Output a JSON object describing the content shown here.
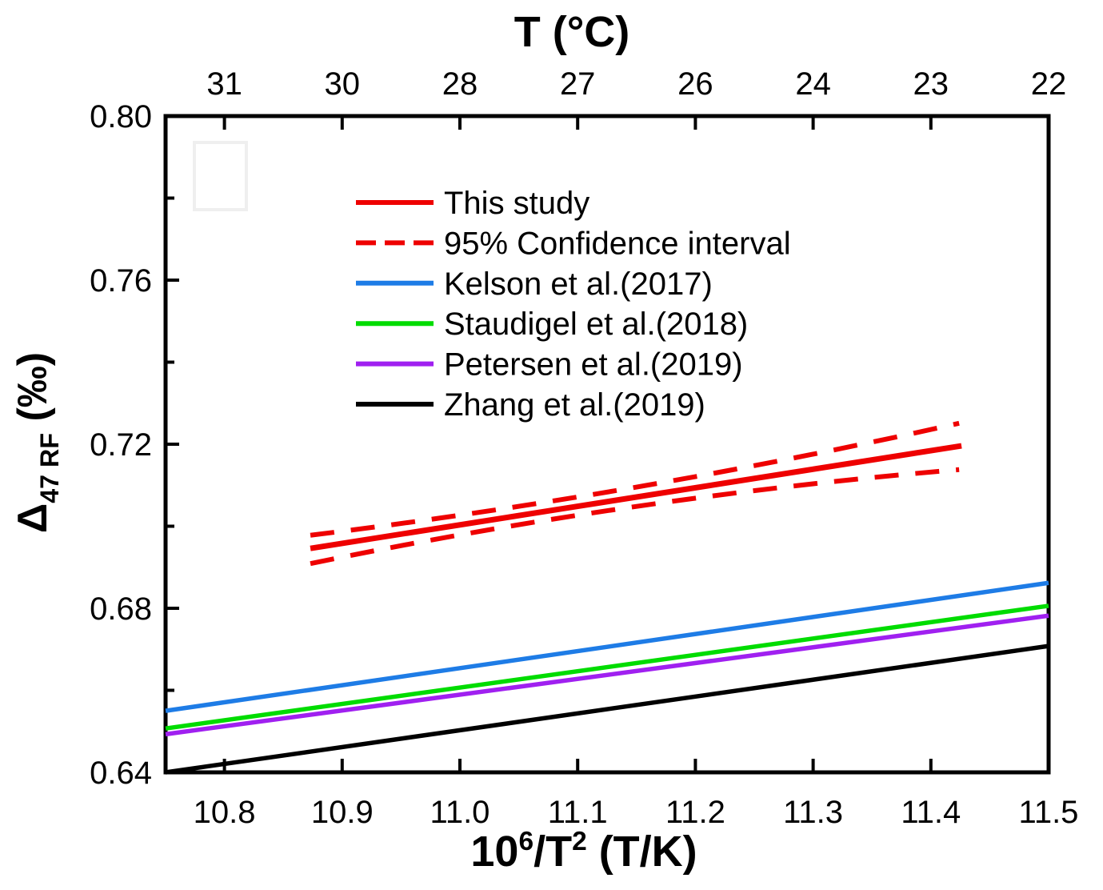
{
  "chart_data": {
    "type": "line",
    "title": "",
    "grid": false,
    "legend_position": "upper-left-inside",
    "top_axis": {
      "title": "T (°C)",
      "tick_positions": [
        10.8,
        10.9,
        11.0,
        11.1,
        11.2,
        11.3,
        11.4,
        11.5
      ],
      "tick_labels": [
        "31",
        "30",
        "28",
        "27",
        "26",
        "24",
        "23",
        "22"
      ]
    },
    "x_axis": {
      "label_plain": "10^6/T^2 (T/K)",
      "label_segments": [
        {
          "t": "10"
        },
        {
          "t": "6",
          "s": "sup"
        },
        {
          "t": "/T"
        },
        {
          "t": "2",
          "s": "sup"
        },
        {
          "t": " (T/K)"
        }
      ],
      "range": [
        10.75,
        11.5
      ],
      "major_ticks": [
        10.8,
        10.9,
        11.0,
        11.1,
        11.2,
        11.3,
        11.4,
        11.5
      ],
      "tick_labels": [
        "10.8",
        "10.9",
        "11.0",
        "11.1",
        "11.2",
        "11.3",
        "11.4",
        "11.5"
      ]
    },
    "y_axis": {
      "label_plain": "Δ47 RF (‰)",
      "label_segments": [
        {
          "t": "Δ"
        },
        {
          "t": "47 RF",
          "s": "sub"
        },
        {
          "t": " (‰)"
        }
      ],
      "range": [
        0.64,
        0.8
      ],
      "major_ticks": [
        0.64,
        0.68,
        0.72,
        0.76,
        0.8
      ],
      "tick_labels": [
        "0.64",
        "0.68",
        "0.72",
        "0.76",
        "0.80"
      ],
      "minor_ticks": [
        0.66,
        0.7,
        0.74,
        0.78
      ]
    },
    "series": [
      {
        "id": "this-study",
        "name": "This study",
        "color": "#EE0000",
        "width": 7,
        "points": [
          [
            10.873,
            0.6946
          ],
          [
            11.426,
            0.7196
          ]
        ]
      },
      {
        "id": "ci-upper",
        "name": "95% Confidence interval (upper)",
        "color": "#EE0000",
        "width": 6,
        "dash": "30 21",
        "curve": true,
        "points": [
          [
            10.873,
            0.6978
          ],
          [
            11.149,
            0.7095
          ],
          [
            11.424,
            0.7251
          ]
        ]
      },
      {
        "id": "ci-lower",
        "name": "95% Confidence interval (lower)",
        "color": "#EE0000",
        "width": 6,
        "dash": "30 21",
        "curve": true,
        "points": [
          [
            10.873,
            0.6909
          ],
          [
            11.149,
            0.7048
          ],
          [
            11.424,
            0.7138
          ]
        ]
      },
      {
        "id": "kelson-2017",
        "name": "Kelson et al.(2017)",
        "color": "#1E7CE6",
        "width": 5.5,
        "points": [
          [
            10.75,
            0.655
          ],
          [
            11.5,
            0.6862
          ]
        ]
      },
      {
        "id": "staudigel-2018",
        "name": "Staudigel et al.(2018)",
        "color": "#00DC00",
        "width": 5.5,
        "points": [
          [
            10.75,
            0.6507
          ],
          [
            11.5,
            0.6806
          ]
        ]
      },
      {
        "id": "petersen-2019",
        "name": "Petersen et al.(2019)",
        "color": "#A020F0",
        "width": 5.5,
        "points": [
          [
            10.75,
            0.6493
          ],
          [
            11.5,
            0.6782
          ]
        ]
      },
      {
        "id": "zhang-2019",
        "name": "Zhang et al.(2019)",
        "color": "#000000",
        "width": 5.5,
        "points": [
          [
            10.75,
            0.64
          ],
          [
            11.5,
            0.6708
          ]
        ]
      }
    ],
    "legend": [
      {
        "label": "This study",
        "color": "#EE0000",
        "dash": false
      },
      {
        "label": "95% Confidence interval",
        "color": "#EE0000",
        "dash": true
      },
      {
        "label": "Kelson et al.(2017)",
        "color": "#1E7CE6",
        "dash": false
      },
      {
        "label": "Staudigel et al.(2018)",
        "color": "#00DC00",
        "dash": false
      },
      {
        "label": "Petersen et al.(2019)",
        "color": "#A020F0",
        "dash": false
      },
      {
        "label": "Zhang et al.(2019)",
        "color": "#000000",
        "dash": false
      }
    ]
  }
}
